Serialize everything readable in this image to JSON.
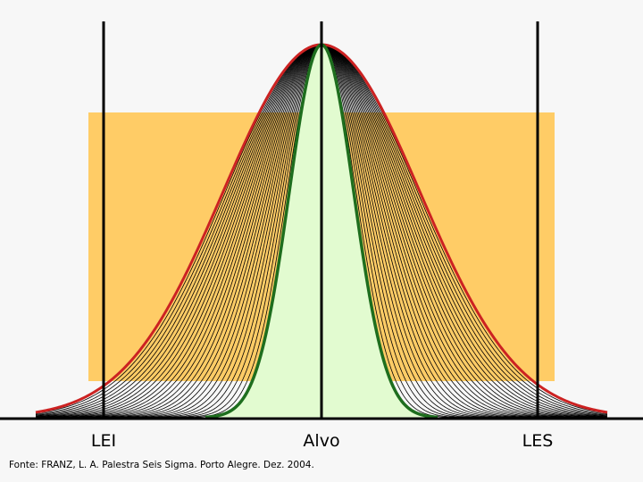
{
  "labels": {
    "lower_limit": "LEI",
    "target": "Alvo",
    "upper_limit": "LES"
  },
  "source": "Fonte: FRANZ, L. A. Palestra Seis Sigma. Porto Alegre. Dez. 2004.",
  "colors": {
    "background": "#f7f7f7",
    "tolerance_band": "#ffcc66",
    "inner_fill": "#e2fbd0",
    "outer_curve": "#cc2222",
    "inner_curve": "#1e6e1e",
    "family_curves": "#000000",
    "limit_lines": "#000000"
  },
  "diagram": {
    "curve_family_count": 28
  }
}
